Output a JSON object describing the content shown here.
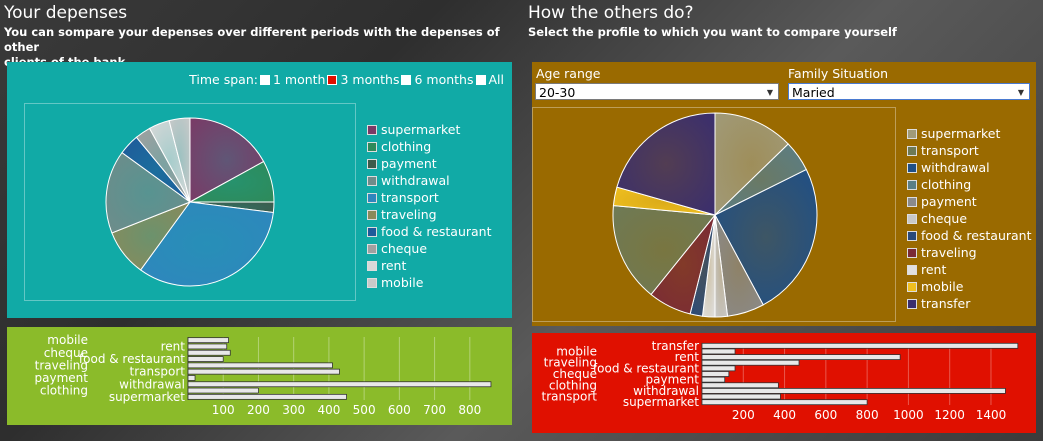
{
  "left": {
    "title": "Your depenses",
    "subtitle_line1": "You can sompare your depenses over different periods with the depenses of other",
    "subtitle_line2": "clients of the bank",
    "timespan": {
      "label": "Time span:",
      "options": [
        "1 month",
        "3 months",
        "6 months",
        "All"
      ],
      "selected": "3 months"
    },
    "legend": [
      "supermarket",
      "clothing",
      "payment",
      "withdrawal",
      "transport",
      "traveling",
      "food & restaurant",
      "cheque",
      "rent",
      "mobile"
    ]
  },
  "right": {
    "title": "How the others do?",
    "subtitle": "Select the profile to which you want to compare yourself",
    "age_label": "Age range",
    "age_value": "20-30",
    "family_label": "Family Situation",
    "family_value": "Maried",
    "legend": [
      "supermarket",
      "transport",
      "withdrawal",
      "clothing",
      "payment",
      "cheque",
      "food & restaurant",
      "traveling",
      "rent",
      "mobile",
      "transfer"
    ]
  },
  "colors": {
    "teal_panel": "#11aaa6",
    "olive_panel": "#9a6a00",
    "green_panel": "#8bbb2a",
    "red_panel": "#e01000",
    "selected_timespan": "#e01000"
  },
  "chart_data": [
    {
      "type": "pie",
      "slices": [
        {
          "label": "supermarket",
          "value": 17,
          "color": "#7a3a66"
        },
        {
          "label": "clothing",
          "value": 8,
          "color": "#2e8a5a"
        },
        {
          "label": "payment",
          "value": 2,
          "color": "#3d5a4a"
        },
        {
          "label": "transport",
          "value": 33,
          "color": "#2f86bd"
        },
        {
          "label": "traveling",
          "value": 9,
          "color": "#8a8a5a"
        },
        {
          "label": "withdrawal",
          "value": 16,
          "color": "#6f8c8a"
        },
        {
          "label": "food & restaurant",
          "value": 4,
          "color": "#1f5a9a"
        },
        {
          "label": "cheque",
          "value": 3,
          "color": "#a0a0a0"
        },
        {
          "label": "rent",
          "value": 4,
          "color": "#d8d8d8"
        },
        {
          "label": "mobile",
          "value": 4,
          "color": "#c9c9c9"
        }
      ]
    },
    {
      "type": "pie",
      "slices": [
        {
          "label": "supermarket",
          "value": 13,
          "color": "#a09a78"
        },
        {
          "label": "clothing",
          "value": 5,
          "color": "#5a7e86"
        },
        {
          "label": "withdrawal",
          "value": 25,
          "color": "#1f4f86"
        },
        {
          "label": "payment",
          "value": 6,
          "color": "#8a8a8a"
        },
        {
          "label": "cheque",
          "value": 2,
          "color": "#c8c8c8"
        },
        {
          "label": "rent",
          "value": 2,
          "color": "#e0e0e0"
        },
        {
          "label": "food & restaurant",
          "value": 2,
          "color": "#2a4a7a"
        },
        {
          "label": "traveling",
          "value": 7,
          "color": "#7a2a36"
        },
        {
          "label": "transport",
          "value": 16,
          "color": "#6e7a56"
        },
        {
          "label": "mobile",
          "value": 3,
          "color": "#f0c020"
        },
        {
          "label": "transfer",
          "value": 21,
          "color": "#3a2e6e"
        }
      ]
    },
    {
      "type": "bar",
      "orientation": "horizontal",
      "categories": [
        "supermarket",
        "clothing",
        "withdrawal",
        "payment",
        "transport",
        "traveling",
        "food & restaurant",
        "cheque",
        "rent",
        "mobile"
      ],
      "values": [
        450,
        200,
        860,
        20,
        430,
        410,
        100,
        120,
        110,
        115
      ],
      "xticks": [
        100,
        200,
        300,
        400,
        500,
        600,
        700,
        800
      ],
      "xlim": [
        0,
        880
      ]
    },
    {
      "type": "bar",
      "orientation": "horizontal",
      "categories": [
        "supermarket",
        "transport",
        "withdrawal",
        "clothing",
        "payment",
        "cheque",
        "food & restaurant",
        "traveling",
        "rent",
        "mobile",
        "transfer"
      ],
      "values": [
        800,
        380,
        1470,
        370,
        110,
        130,
        160,
        470,
        960,
        160,
        1530
      ],
      "xticks": [
        200,
        400,
        600,
        800,
        1000,
        1200,
        1400
      ],
      "xlim": [
        0,
        1560
      ]
    }
  ]
}
